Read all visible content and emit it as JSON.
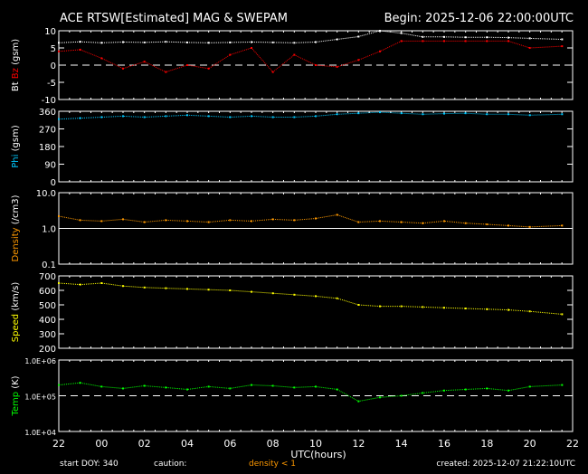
{
  "chart_data": {
    "type": "scatter",
    "title": "ACE RTSW[Estimated] MAG & SWEPAM",
    "begin": "Begin: 2025-12-06 22:00:00UTC",
    "xlabel": "UTC(hours)",
    "x_ticks": [
      "22",
      "00",
      "02",
      "04",
      "06",
      "08",
      "10",
      "12",
      "14",
      "16",
      "18",
      "20",
      "22"
    ],
    "footer": {
      "start_doy": "start DOY: 340",
      "caution": "caution:",
      "caution_note": "density < 1",
      "created": "created: 2025-12-07 21:22:10UTC"
    },
    "times": [
      "12-06 22:00",
      "12-06 23:00",
      "12-07 00:00",
      "12-07 01:00",
      "12-07 02:00",
      "12-07 03:00",
      "12-07 04:00",
      "12-07 05:00",
      "12-07 06:00",
      "12-07 07:00",
      "12-07 08:00",
      "12-07 09:00",
      "12-07 10:00",
      "12-07 11:00",
      "12-07 12:00",
      "12-07 13:00",
      "12-07 14:00",
      "12-07 15:00",
      "12-07 16:00",
      "12-07 17:00",
      "12-07 18:00",
      "12-07 19:00",
      "12-07 20:00",
      "12-07 21:00"
    ],
    "panels": [
      {
        "ylabel_parts": [
          {
            "text": "Bt",
            "color": "#ffffff"
          },
          {
            "text": " Bz",
            "color": "#ff0000"
          },
          {
            "text": " (gsm)",
            "color": "#ffffff"
          }
        ],
        "scale": "linear",
        "ylim": [
          -10,
          10
        ],
        "yticks": [
          "10",
          "5",
          "0",
          "-5",
          "-10"
        ],
        "ytick_values": [
          10,
          5,
          0,
          -5,
          -10
        ],
        "ref_line": 0,
        "series": [
          {
            "name": "Bt",
            "color": "#ffffff",
            "values": [
              6.5,
              6.8,
              6.5,
              6.7,
              6.6,
              6.8,
              6.6,
              6.5,
              6.6,
              6.7,
              6.6,
              6.5,
              6.7,
              7.5,
              8.3,
              10,
              9.3,
              8.2,
              8.2,
              8.1,
              8.1,
              8.0,
              7.8,
              7.5
            ]
          },
          {
            "name": "Bz",
            "color": "#ff0000",
            "values": [
              4,
              4.5,
              2,
              -1,
              1,
              -2,
              0,
              -1,
              3,
              5,
              -2,
              3,
              0,
              -0.5,
              1.5,
              4,
              7,
              7,
              7,
              7,
              7,
              7,
              5,
              5.5
            ]
          }
        ]
      },
      {
        "ylabel_parts": [
          {
            "text": "Phi",
            "color": "#00c8ff"
          },
          {
            "text": " (gsm)",
            "color": "#ffffff"
          }
        ],
        "scale": "linear",
        "ylim": [
          0,
          360
        ],
        "yticks": [
          "360",
          "270",
          "180",
          "90",
          "0"
        ],
        "ytick_values": [
          360,
          270,
          180,
          90,
          0
        ],
        "series": [
          {
            "name": "Phi",
            "color": "#00c8ff",
            "values": [
              320,
              325,
              330,
              335,
              330,
              335,
              340,
              335,
              330,
              335,
              330,
              330,
              335,
              345,
              350,
              355,
              350,
              345,
              348,
              350,
              345,
              345,
              340,
              345
            ]
          }
        ]
      },
      {
        "ylabel_parts": [
          {
            "text": "Density",
            "color": "#ff9900"
          },
          {
            "text": " (/cm3)",
            "color": "#ffffff"
          }
        ],
        "scale": "log",
        "ylim": [
          0.1,
          10
        ],
        "yticks": [
          "10.0",
          "1.0",
          "0.1"
        ],
        "ytick_values": [
          10,
          1,
          0.1
        ],
        "ref_line": 1,
        "series": [
          {
            "name": "Density",
            "color": "#ff9900",
            "values": [
              2.2,
              1.7,
              1.6,
              1.8,
              1.5,
              1.7,
              1.6,
              1.5,
              1.7,
              1.6,
              1.8,
              1.7,
              1.9,
              2.4,
              1.5,
              1.6,
              1.5,
              1.4,
              1.6,
              1.4,
              1.3,
              1.2,
              1.1,
              1.2
            ]
          }
        ]
      },
      {
        "ylabel_parts": [
          {
            "text": "Speed",
            "color": "#ffff00"
          },
          {
            "text": " (km/s)",
            "color": "#ffffff"
          }
        ],
        "scale": "linear",
        "ylim": [
          200,
          700
        ],
        "yticks": [
          "700",
          "600",
          "500",
          "400",
          "300",
          "200"
        ],
        "ytick_values": [
          700,
          600,
          500,
          400,
          300,
          200
        ],
        "series": [
          {
            "name": "Speed",
            "color": "#ffff00",
            "values": [
              650,
              640,
              650,
              630,
              620,
              615,
              610,
              605,
              600,
              590,
              580,
              570,
              560,
              545,
              500,
              490,
              490,
              485,
              480,
              475,
              470,
              465,
              455,
              435
            ]
          }
        ]
      },
      {
        "ylabel_parts": [
          {
            "text": "Temp",
            "color": "#00ff00"
          },
          {
            "text": " (K)",
            "color": "#ffffff"
          }
        ],
        "scale": "log",
        "ylim": [
          10000,
          1000000
        ],
        "yticks": [
          "1.0E+06",
          "1.0E+05",
          "1.0E+04"
        ],
        "ytick_values": [
          1000000,
          100000,
          10000
        ],
        "ref_line": 100000,
        "series": [
          {
            "name": "Temp",
            "color": "#00ff00",
            "values": [
              200000,
              230000,
              180000,
              160000,
              190000,
              170000,
              150000,
              180000,
              160000,
              200000,
              190000,
              170000,
              180000,
              150000,
              70000,
              90000,
              100000,
              120000,
              140000,
              150000,
              160000,
              140000,
              180000,
              200000
            ]
          }
        ]
      }
    ]
  }
}
